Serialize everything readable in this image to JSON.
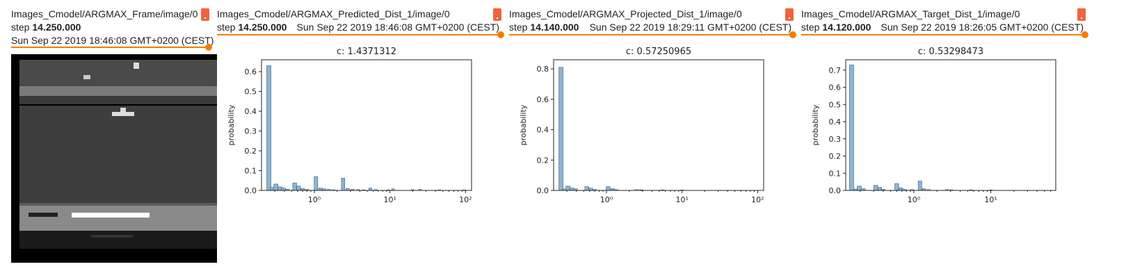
{
  "accent_color": "#f57c00",
  "menu_color": "#f0643c",
  "bar_color": "#8fb3d1",
  "frame_card": {
    "title": "Images_Cmodel/ARGMAX_Frame/image/0",
    "step_label": "step",
    "step_value": "14.250.000",
    "timestamp": "Sun Sep 22 2019 18:46:08 GMT+0200 (CEST)",
    "menu_icon": "more-options-icon",
    "image_alt": "game frame"
  },
  "chart_cards": [
    {
      "title": "Images_Cmodel/ARGMAX_Predicted_Dist_1/image/0",
      "step_label": "step",
      "step_value": "14.250.000",
      "timestamp": "Sun Sep 22 2019 18:46:08 GMT+0200 (CEST)",
      "menu_icon": "more-options-icon"
    },
    {
      "title": "Images_Cmodel/ARGMAX_Projected_Dist_1/image/0",
      "step_label": "step",
      "step_value": "14.140.000",
      "timestamp": "Sun Sep 22 2019 18:29:11 GMT+0200 (CEST)",
      "menu_icon": "more-options-icon"
    },
    {
      "title": "Images_Cmodel/ARGMAX_Target_Dist_1/image/0",
      "step_label": "step",
      "step_value": "14.120.000",
      "timestamp": "Sun Sep 22 2019 18:26:05 GMT+0200 (CEST)",
      "menu_icon": "more-options-icon"
    }
  ],
  "chart_data": [
    {
      "type": "bar",
      "title": "c: 1.4371312",
      "xlabel": "",
      "ylabel": "probability",
      "xscale": "log",
      "xlim": [
        0.2,
        120
      ],
      "ylim": [
        0,
        0.66
      ],
      "yticks": [
        0.0,
        0.1,
        0.2,
        0.3,
        0.4,
        0.5,
        0.6
      ],
      "ytick_labels": [
        "0.0",
        "0.1",
        "0.2",
        "0.3",
        "0.4",
        "0.5",
        "0.6"
      ],
      "xticks": [
        1,
        10,
        100
      ],
      "xtick_labels": [
        "10⁰",
        "10¹",
        "10²"
      ],
      "grid": false,
      "x": [
        0.25,
        0.28,
        0.31,
        0.35,
        0.39,
        0.44,
        0.55,
        0.62,
        0.7,
        0.8,
        1.05,
        1.2,
        1.35,
        1.55,
        1.8,
        2.4,
        2.75,
        3.2,
        3.8,
        4.5,
        5.5,
        6.5,
        9.5,
        11,
        20,
        25,
        45,
        95
      ],
      "values": [
        0.63,
        0.015,
        0.032,
        0.018,
        0.012,
        0.006,
        0.038,
        0.022,
        0.01,
        0.005,
        0.07,
        0.012,
        0.008,
        0.005,
        0.003,
        0.062,
        0.01,
        0.006,
        0.004,
        0.003,
        0.012,
        0.004,
        0.003,
        0.008,
        0.004,
        0.005,
        0.003,
        0.003
      ]
    },
    {
      "type": "bar",
      "title": "c: 0.57250965",
      "xlabel": "",
      "ylabel": "probability",
      "xscale": "log",
      "xlim": [
        0.2,
        120
      ],
      "ylim": [
        0,
        0.86
      ],
      "yticks": [
        0.0,
        0.2,
        0.4,
        0.6,
        0.8
      ],
      "ytick_labels": [
        "0.0",
        "0.2",
        "0.4",
        "0.6",
        "0.8"
      ],
      "xticks": [
        1,
        10,
        100
      ],
      "xtick_labels": [
        "10⁰",
        "10¹",
        "10²"
      ],
      "grid": false,
      "x": [
        0.25,
        0.28,
        0.31,
        0.35,
        0.39,
        0.55,
        0.62,
        0.7,
        1.05,
        1.2,
        1.35,
        2.5,
        2.9,
        5.5,
        10
      ],
      "values": [
        0.81,
        0.01,
        0.028,
        0.016,
        0.01,
        0.025,
        0.015,
        0.006,
        0.025,
        0.012,
        0.005,
        0.005,
        0.004,
        0.004,
        0.003
      ]
    },
    {
      "type": "bar",
      "title": "c: 0.53298473",
      "xlabel": "",
      "ylabel": "probability",
      "xscale": "log",
      "xlim": [
        0.13,
        70
      ],
      "ylim": [
        0,
        0.76
      ],
      "yticks": [
        0.0,
        0.1,
        0.2,
        0.3,
        0.4,
        0.5,
        0.6,
        0.7
      ],
      "ytick_labels": [
        "0.0",
        "0.1",
        "0.2",
        "0.3",
        "0.4",
        "0.5",
        "0.6",
        "0.7"
      ],
      "xticks": [
        1,
        10
      ],
      "xtick_labels": [
        "10⁰",
        "10¹"
      ],
      "grid": false,
      "x": [
        0.155,
        0.175,
        0.195,
        0.22,
        0.32,
        0.36,
        0.4,
        0.6,
        0.68,
        0.76,
        0.95,
        1.2,
        1.35,
        1.55,
        2.7,
        3.1,
        5.5,
        10
      ],
      "values": [
        0.73,
        0.008,
        0.025,
        0.01,
        0.03,
        0.018,
        0.006,
        0.04,
        0.015,
        0.006,
        0.005,
        0.055,
        0.01,
        0.005,
        0.005,
        0.003,
        0.004,
        0.003
      ]
    }
  ]
}
